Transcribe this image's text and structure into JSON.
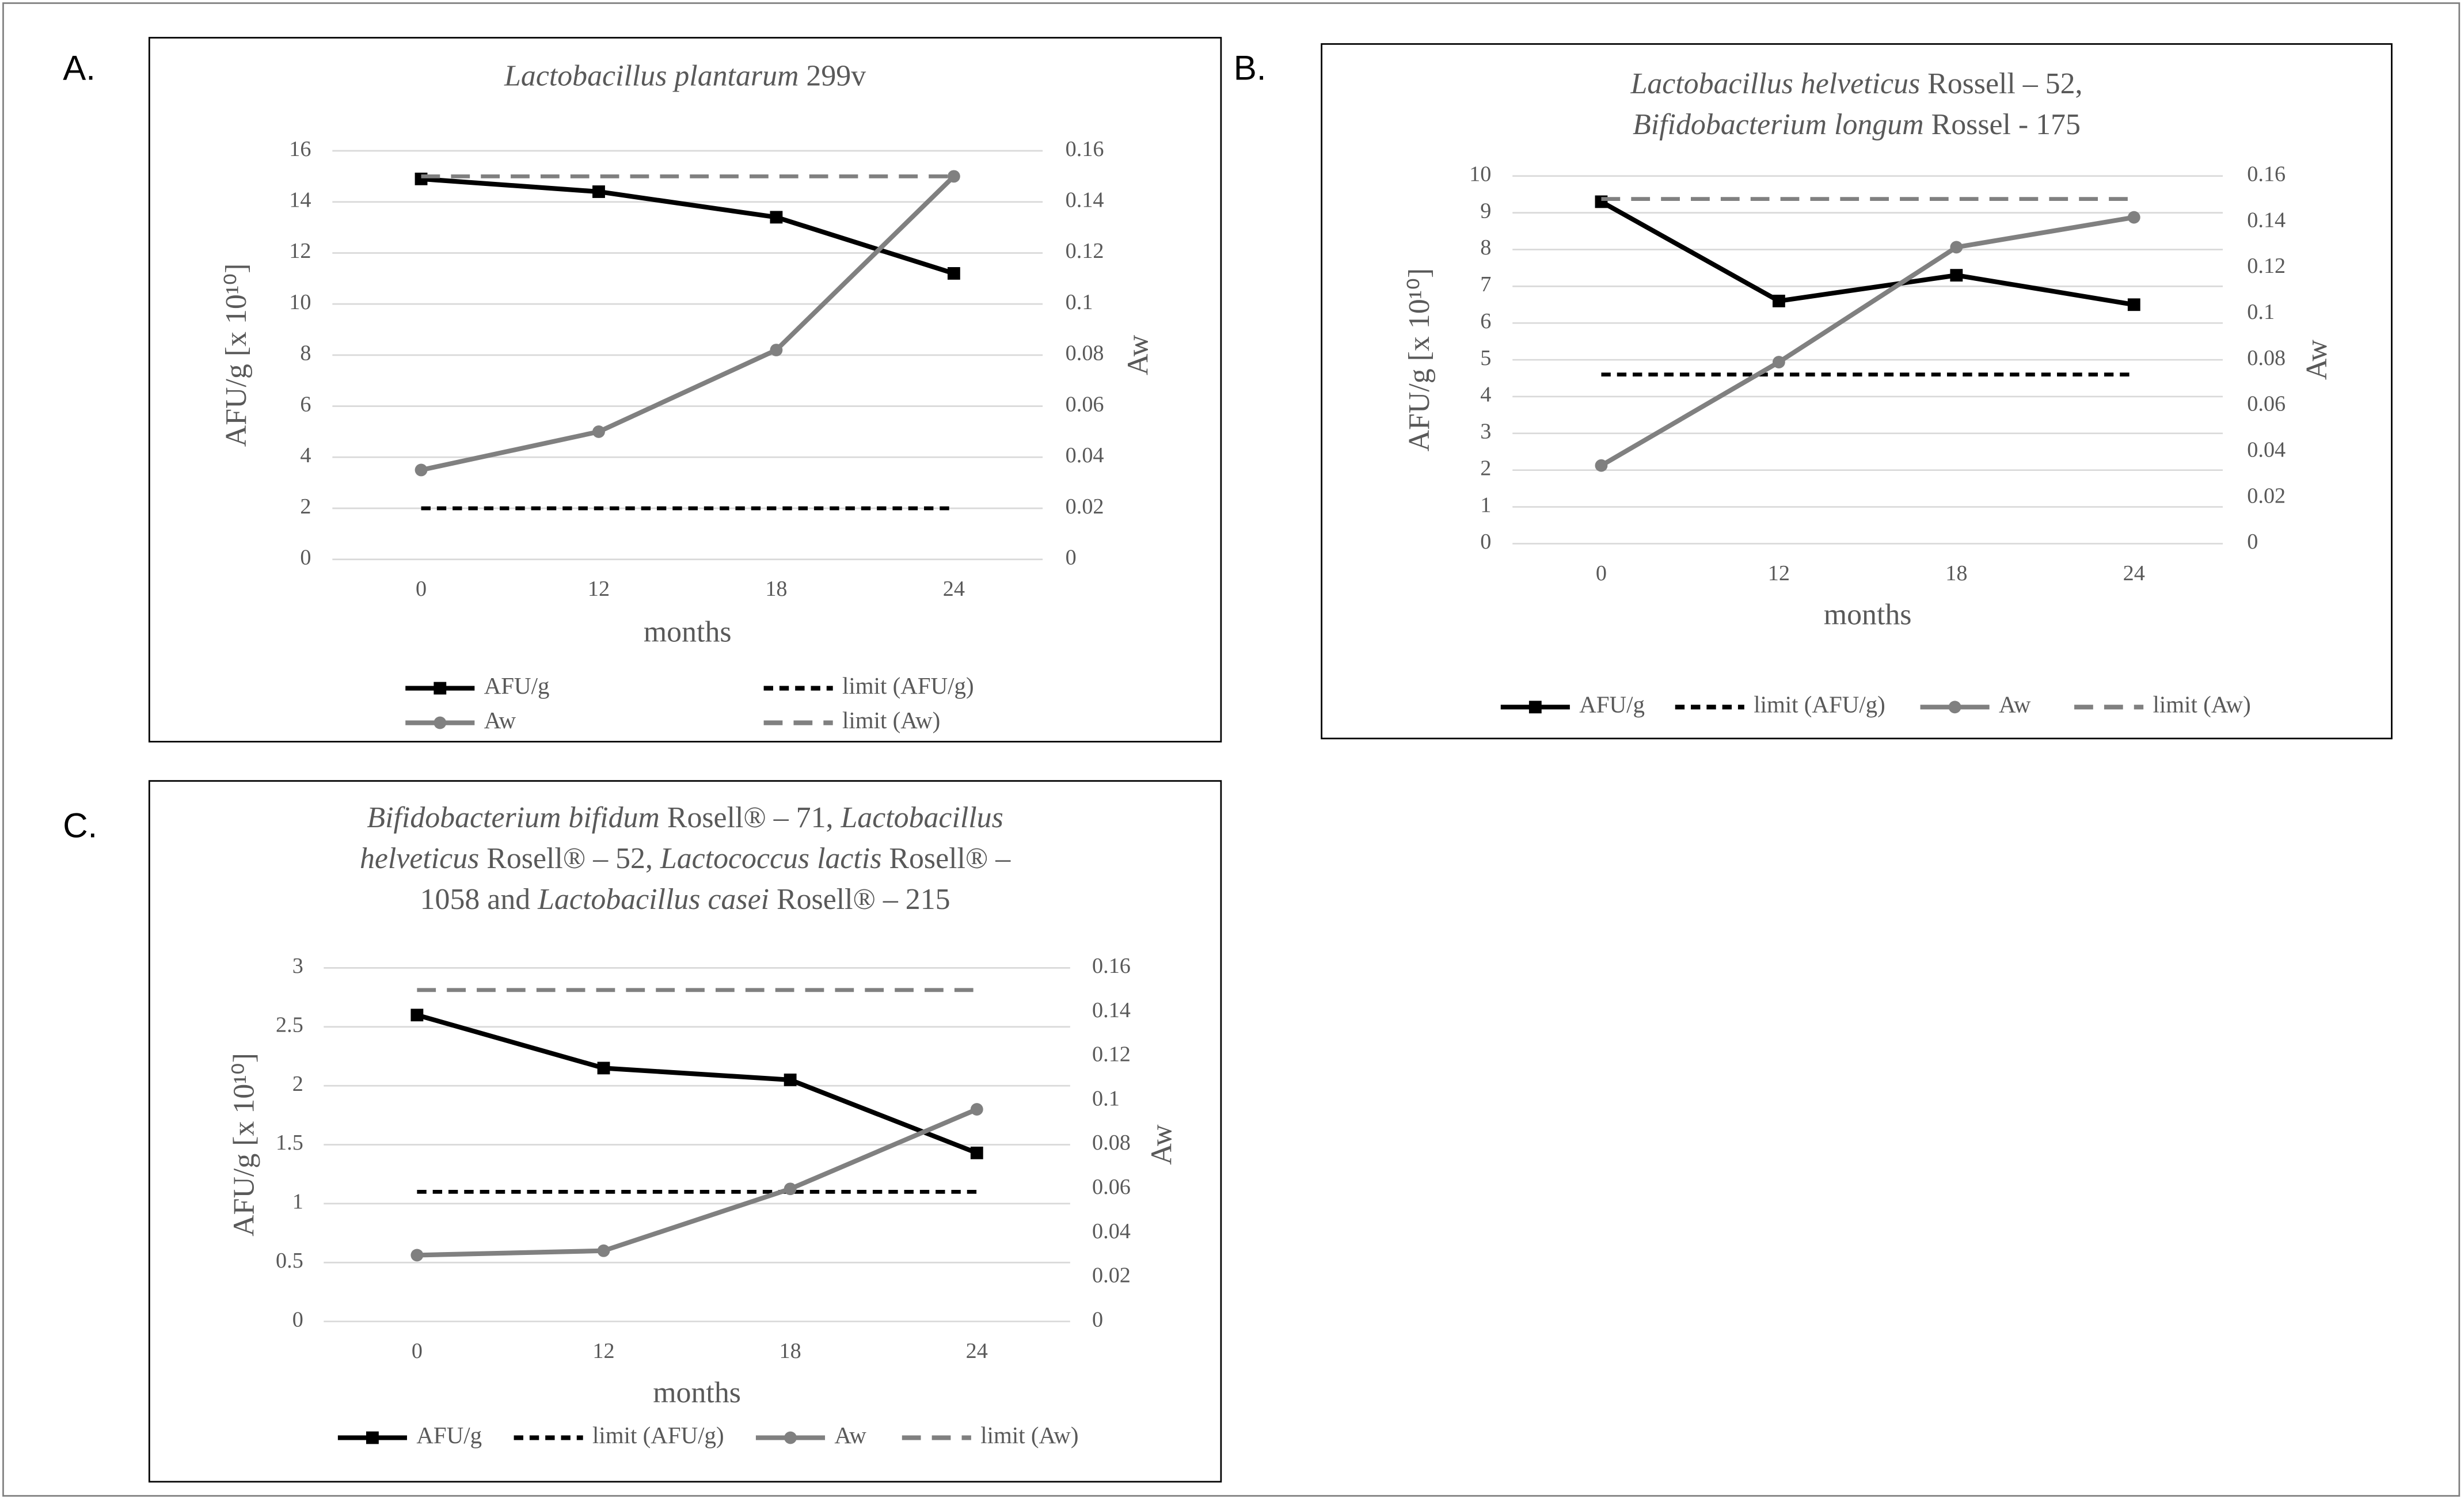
{
  "chart_data": [
    {
      "type": "line",
      "label": "A.",
      "title": [
        [
          [
            "Lactobacillus plantarum",
            "italic"
          ],
          [
            " 299v",
            "normal"
          ]
        ]
      ],
      "categories": [
        "0",
        "12",
        "18",
        "24"
      ],
      "xlabel": "months",
      "ylabel": "AFU/g [x 10¹⁰]",
      "y2label": "Aw",
      "ylim": [
        0,
        16
      ],
      "yticks": [
        0,
        2,
        4,
        6,
        8,
        10,
        12,
        14,
        16
      ],
      "y2lim": [
        0,
        0.16
      ],
      "y2ticks": [
        0,
        0.02,
        0.04,
        0.06,
        0.08,
        0.1,
        0.12,
        0.14,
        0.16
      ],
      "grid": true,
      "legend": "bottom",
      "series": [
        {
          "name": "AFU/g",
          "color": "#000000",
          "dash": false,
          "marker": "square",
          "values": [
            14.9,
            14.4,
            13.4,
            11.2
          ]
        },
        {
          "name": "limit (AFU/g)",
          "color": "#000000",
          "dash": true,
          "marker": null,
          "values": [
            2,
            2,
            2,
            2
          ]
        },
        {
          "name": "Aw",
          "color": "#808080",
          "dash": false,
          "marker": "circle",
          "axis": "y2",
          "values": [
            0.035,
            0.05,
            0.082,
            0.15
          ]
        },
        {
          "name": "limit (Aw)",
          "color": "#808080",
          "dash": true,
          "marker": null,
          "axis": "y2",
          "values": [
            0.15,
            0.15,
            0.15,
            0.15
          ]
        }
      ]
    },
    {
      "type": "line",
      "label": "B.",
      "title": [
        [
          [
            "Lactobacillus helveticus",
            "italic"
          ],
          [
            " Rossell – 52,",
            "normal"
          ]
        ],
        [
          [
            "Bifidobacterium longum",
            "italic"
          ],
          [
            " Rossel - 175",
            "normal"
          ]
        ]
      ],
      "categories": [
        "0",
        "12",
        "18",
        "24"
      ],
      "xlabel": "months",
      "ylabel": "AFU/g [x 10¹⁰]",
      "y2label": "Aw",
      "ylim": [
        0,
        10
      ],
      "yticks": [
        0,
        1,
        2,
        3,
        4,
        5,
        6,
        7,
        8,
        9,
        10
      ],
      "y2lim": [
        0,
        0.16
      ],
      "y2ticks": [
        0,
        0.02,
        0.04,
        0.06,
        0.08,
        0.1,
        0.12,
        0.14,
        0.16
      ],
      "grid": true,
      "legend": "bottom",
      "series": [
        {
          "name": "AFU/g",
          "color": "#000000",
          "dash": false,
          "marker": "square",
          "values": [
            9.3,
            6.6,
            7.3,
            6.5
          ]
        },
        {
          "name": "limit (AFU/g)",
          "color": "#000000",
          "dash": true,
          "marker": null,
          "values": [
            4.6,
            4.6,
            4.6,
            4.6
          ]
        },
        {
          "name": "Aw",
          "color": "#808080",
          "dash": false,
          "marker": "circle",
          "axis": "y2",
          "values": [
            0.034,
            0.079,
            0.129,
            0.142
          ]
        },
        {
          "name": "limit (Aw)",
          "color": "#808080",
          "dash": true,
          "marker": null,
          "axis": "y2",
          "values": [
            0.15,
            0.15,
            0.15,
            0.15
          ]
        }
      ]
    },
    {
      "type": "line",
      "label": "C.",
      "title": [
        [
          [
            "Bifidobacterium bifidum",
            "italic"
          ],
          [
            " Rosell® – 71, ",
            "normal"
          ],
          [
            "Lactobacillus",
            "italic"
          ]
        ],
        [
          [
            "helveticus",
            "italic"
          ],
          [
            " Rosell® – 52, ",
            "normal"
          ],
          [
            "Lactococcus lactis",
            "italic"
          ],
          [
            " Rosell® –",
            "normal"
          ]
        ],
        [
          [
            "1058 and ",
            "normal"
          ],
          [
            "Lactobacillus casei",
            "italic"
          ],
          [
            " Rosell® –     215",
            "normal"
          ]
        ]
      ],
      "categories": [
        "0",
        "12",
        "18",
        "24"
      ],
      "xlabel": "months",
      "ylabel": "AFU/g [x 10¹⁰]",
      "y2label": "Aw",
      "ylim": [
        0,
        3
      ],
      "yticks": [
        0,
        0.5,
        1,
        1.5,
        2,
        2.5,
        3
      ],
      "y2lim": [
        0,
        0.16
      ],
      "y2ticks": [
        0,
        0.02,
        0.04,
        0.06,
        0.08,
        0.1,
        0.12,
        0.14,
        0.16
      ],
      "grid": true,
      "legend": "bottom",
      "series": [
        {
          "name": "AFU/g",
          "color": "#000000",
          "dash": false,
          "marker": "square",
          "values": [
            2.6,
            2.15,
            2.05,
            1.43
          ]
        },
        {
          "name": "limit (AFU/g)",
          "color": "#000000",
          "dash": true,
          "marker": null,
          "values": [
            1.1,
            1.1,
            1.1,
            1.1
          ]
        },
        {
          "name": "Aw",
          "color": "#808080",
          "dash": false,
          "marker": "circle",
          "axis": "y2",
          "values": [
            0.03,
            0.032,
            0.06,
            0.096
          ]
        },
        {
          "name": "limit (Aw)",
          "color": "#808080",
          "dash": true,
          "marker": null,
          "axis": "y2",
          "values": [
            0.15,
            0.15,
            0.15,
            0.15
          ]
        }
      ]
    }
  ]
}
